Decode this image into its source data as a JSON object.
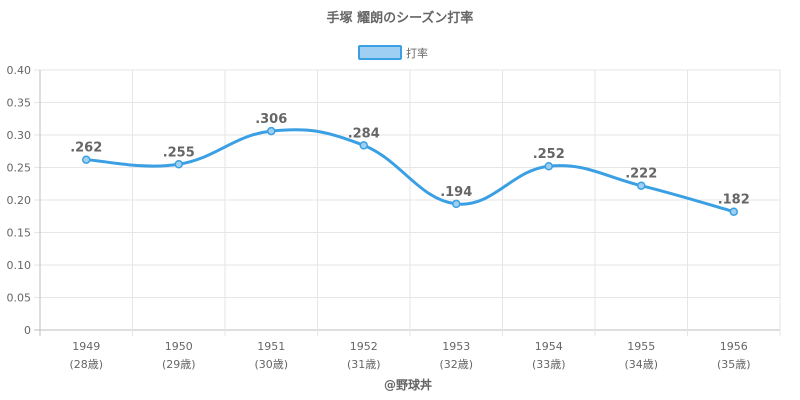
{
  "title": "手塚 耀朗のシーズン打率",
  "watermark": "@野球丼",
  "colors": {
    "line": "#3aa0e3",
    "legend_fill": "#9fd0f3",
    "text": "#666666"
  },
  "chart_data": {
    "type": "line",
    "title": "手塚 耀朗のシーズン打率",
    "xlabel": "",
    "ylabel": "",
    "categories": [
      "1949",
      "1950",
      "1951",
      "1952",
      "1953",
      "1954",
      "1955",
      "1956"
    ],
    "category_sublabels": [
      "(28歳)",
      "(29歳)",
      "(30歳)",
      "(31歳)",
      "(32歳)",
      "(33歳)",
      "(34歳)",
      "(35歳)"
    ],
    "series": [
      {
        "name": "打率",
        "values": [
          0.262,
          0.255,
          0.306,
          0.284,
          0.194,
          0.252,
          0.222,
          0.182
        ],
        "labels": [
          ".262",
          ".255",
          ".306",
          ".284",
          ".194",
          ".252",
          ".222",
          ".182"
        ]
      }
    ],
    "ylim": [
      0,
      0.4
    ],
    "yticks": [
      "0",
      "0.05",
      "0.10",
      "0.15",
      "0.20",
      "0.25",
      "0.30",
      "0.35",
      "0.40"
    ],
    "grid": true,
    "legend": "top-center"
  }
}
